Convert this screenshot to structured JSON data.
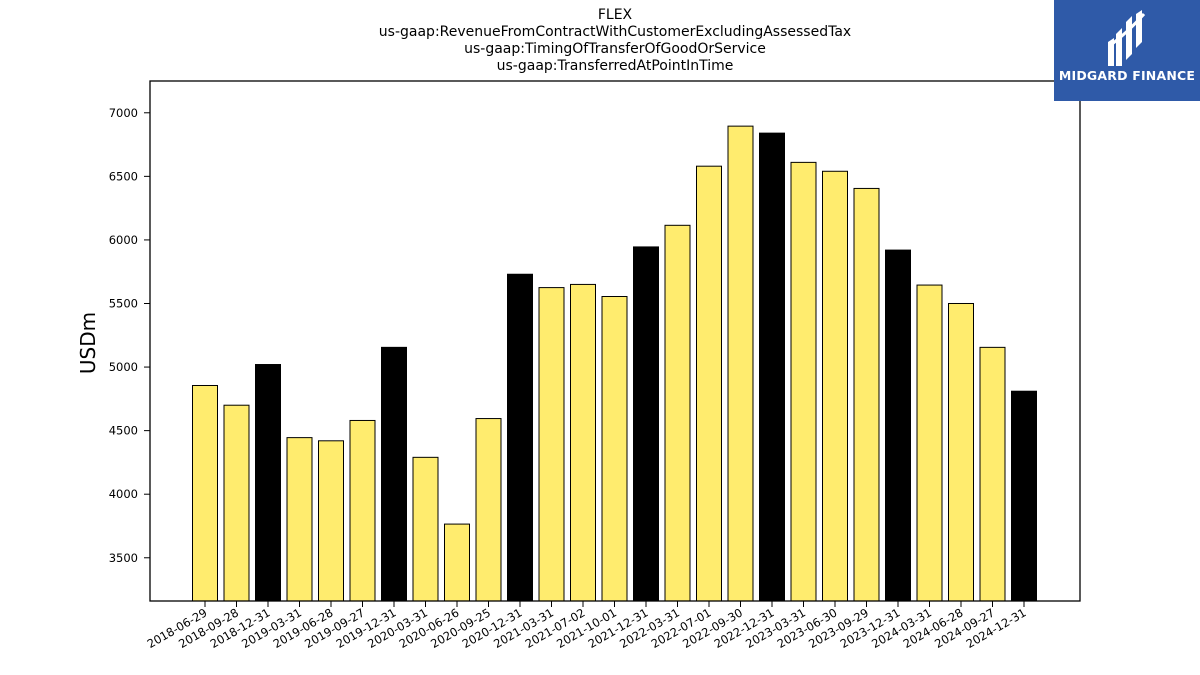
{
  "logo": {
    "text": "MIDGARD FINANCE"
  },
  "chart_data": {
    "type": "bar",
    "title_lines": [
      "FLEX",
      "us-gaap:RevenueFromContractWithCustomerExcludingAssessedTax",
      "us-gaap:TimingOfTransferOfGoodOrService",
      "us-gaap:TransferredAtPointInTime"
    ],
    "xlabel": "",
    "ylabel": "USDm",
    "ylim": [
      3160,
      7250
    ],
    "yticks": [
      3500,
      4000,
      4500,
      5000,
      5500,
      6000,
      6500,
      7000
    ],
    "categories": [
      "2018-06-29",
      "2018-09-28",
      "2018-12-31",
      "2019-03-31",
      "2019-06-28",
      "2019-09-27",
      "2019-12-31",
      "2020-03-31",
      "2020-06-26",
      "2020-09-25",
      "2020-12-31",
      "2021-03-31",
      "2021-07-02",
      "2021-10-01",
      "2021-12-31",
      "2022-03-31",
      "2022-07-01",
      "2022-09-30",
      "2022-12-31",
      "2023-03-31",
      "2023-06-30",
      "2023-09-29",
      "2023-12-31",
      "2024-03-31",
      "2024-06-28",
      "2024-09-27",
      "2024-12-31"
    ],
    "values": [
      4855,
      4700,
      5020,
      4445,
      4420,
      4580,
      5155,
      4290,
      3765,
      4595,
      5730,
      5625,
      5650,
      5555,
      5945,
      6115,
      6580,
      6895,
      6840,
      6610,
      6540,
      6405,
      5920,
      5645,
      5500,
      5155,
      4810
    ],
    "colors": {
      "quarter": "#ffec6e",
      "year_end": "#000000",
      "edge": "#000000"
    },
    "bar_color_key": [
      "quarter",
      "quarter",
      "year_end",
      "quarter",
      "quarter",
      "quarter",
      "year_end",
      "quarter",
      "quarter",
      "quarter",
      "year_end",
      "quarter",
      "quarter",
      "quarter",
      "year_end",
      "quarter",
      "quarter",
      "quarter",
      "year_end",
      "quarter",
      "quarter",
      "quarter",
      "year_end",
      "quarter",
      "quarter",
      "quarter",
      "year_end"
    ],
    "grid": false,
    "legend": "none"
  }
}
